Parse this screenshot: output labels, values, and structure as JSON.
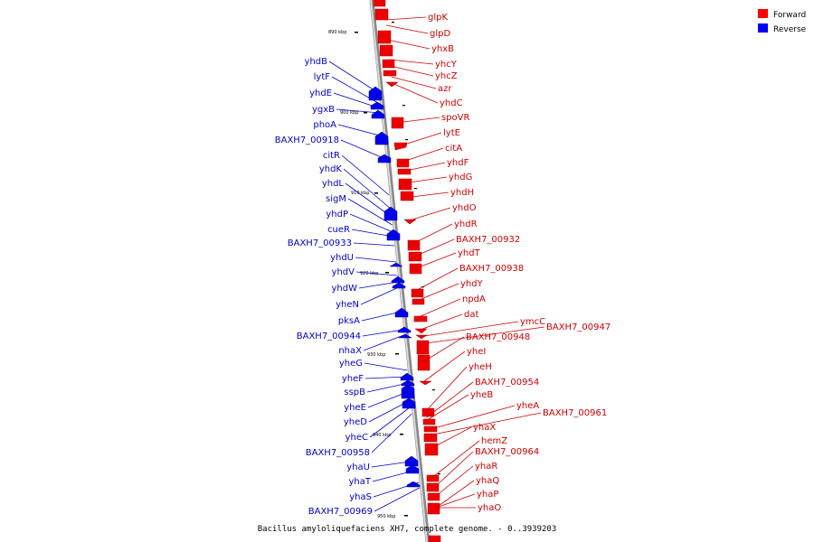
{
  "caption": "Bacillus amyloliquefaciens XH7, complete genome. - 0..3939203",
  "legend": [
    {
      "label": "Forward",
      "color": "#ff0000"
    },
    {
      "label": "Reverse",
      "color": "#0000ff"
    }
  ],
  "ticks": [
    "890 kbp",
    "900 kbp",
    "910 kbp",
    "920 kbp",
    "930 kbp",
    "940 kbp",
    "950 kbp"
  ],
  "forward_genes": [
    "glpK",
    "glpD",
    "yhxB",
    "yhcY",
    "yhcZ",
    "azr",
    "yhdC",
    "spoVR",
    "lytE",
    "citA",
    "yhdF",
    "yhdG",
    "yhdH",
    "yhdO",
    "yhdR",
    "BAXH7_00932",
    "yhdT",
    "BAXH7_00938",
    "yhdY",
    "npdA",
    "dat",
    "ymcC",
    "BAXH7_00947",
    "BAXH7_00948",
    "yheI",
    "yheH",
    "BAXH7_00954",
    "yheB",
    "yheA",
    "BAXH7_00961",
    "yhaX",
    "hemZ",
    "BAXH7_00964",
    "yhaR",
    "yhaQ",
    "yhaP",
    "yhaO"
  ],
  "reverse_genes": [
    "yhdB",
    "lytF",
    "yhdE",
    "ygxB",
    "phoA",
    "BAXH7_00918",
    "citR",
    "yhdK",
    "yhdL",
    "sigM",
    "yhdP",
    "cueR",
    "BAXH7_00933",
    "yhdU",
    "yhdV",
    "yhdW",
    "yheN",
    "pksA",
    "BAXH7_00944",
    "nhaX",
    "yheG",
    "yheF",
    "sspB",
    "yheE",
    "yheD",
    "yheC",
    "BAXH7_00958",
    "yhaU",
    "yhaT",
    "yhaS",
    "BAXH7_00969"
  ]
}
